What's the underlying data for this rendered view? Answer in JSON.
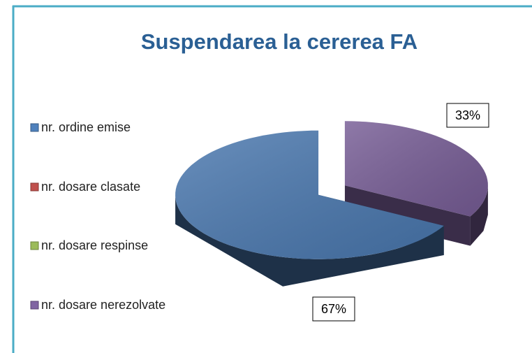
{
  "chart_data": {
    "type": "pie",
    "title": "Suspendarea la cererea FA",
    "categories": [
      "nr. ordine emise",
      "nr. dosare clasate",
      "nr. dosare respinse",
      "nr. dosare nerezolvate"
    ],
    "values": [
      67,
      0,
      0,
      33
    ],
    "value_labels": [
      "67%",
      null,
      null,
      "33%"
    ],
    "colors": [
      "#4f81bd",
      "#c0504d",
      "#9bbb59",
      "#8064a2"
    ],
    "legend": "left",
    "style": "3d-exploded"
  }
}
